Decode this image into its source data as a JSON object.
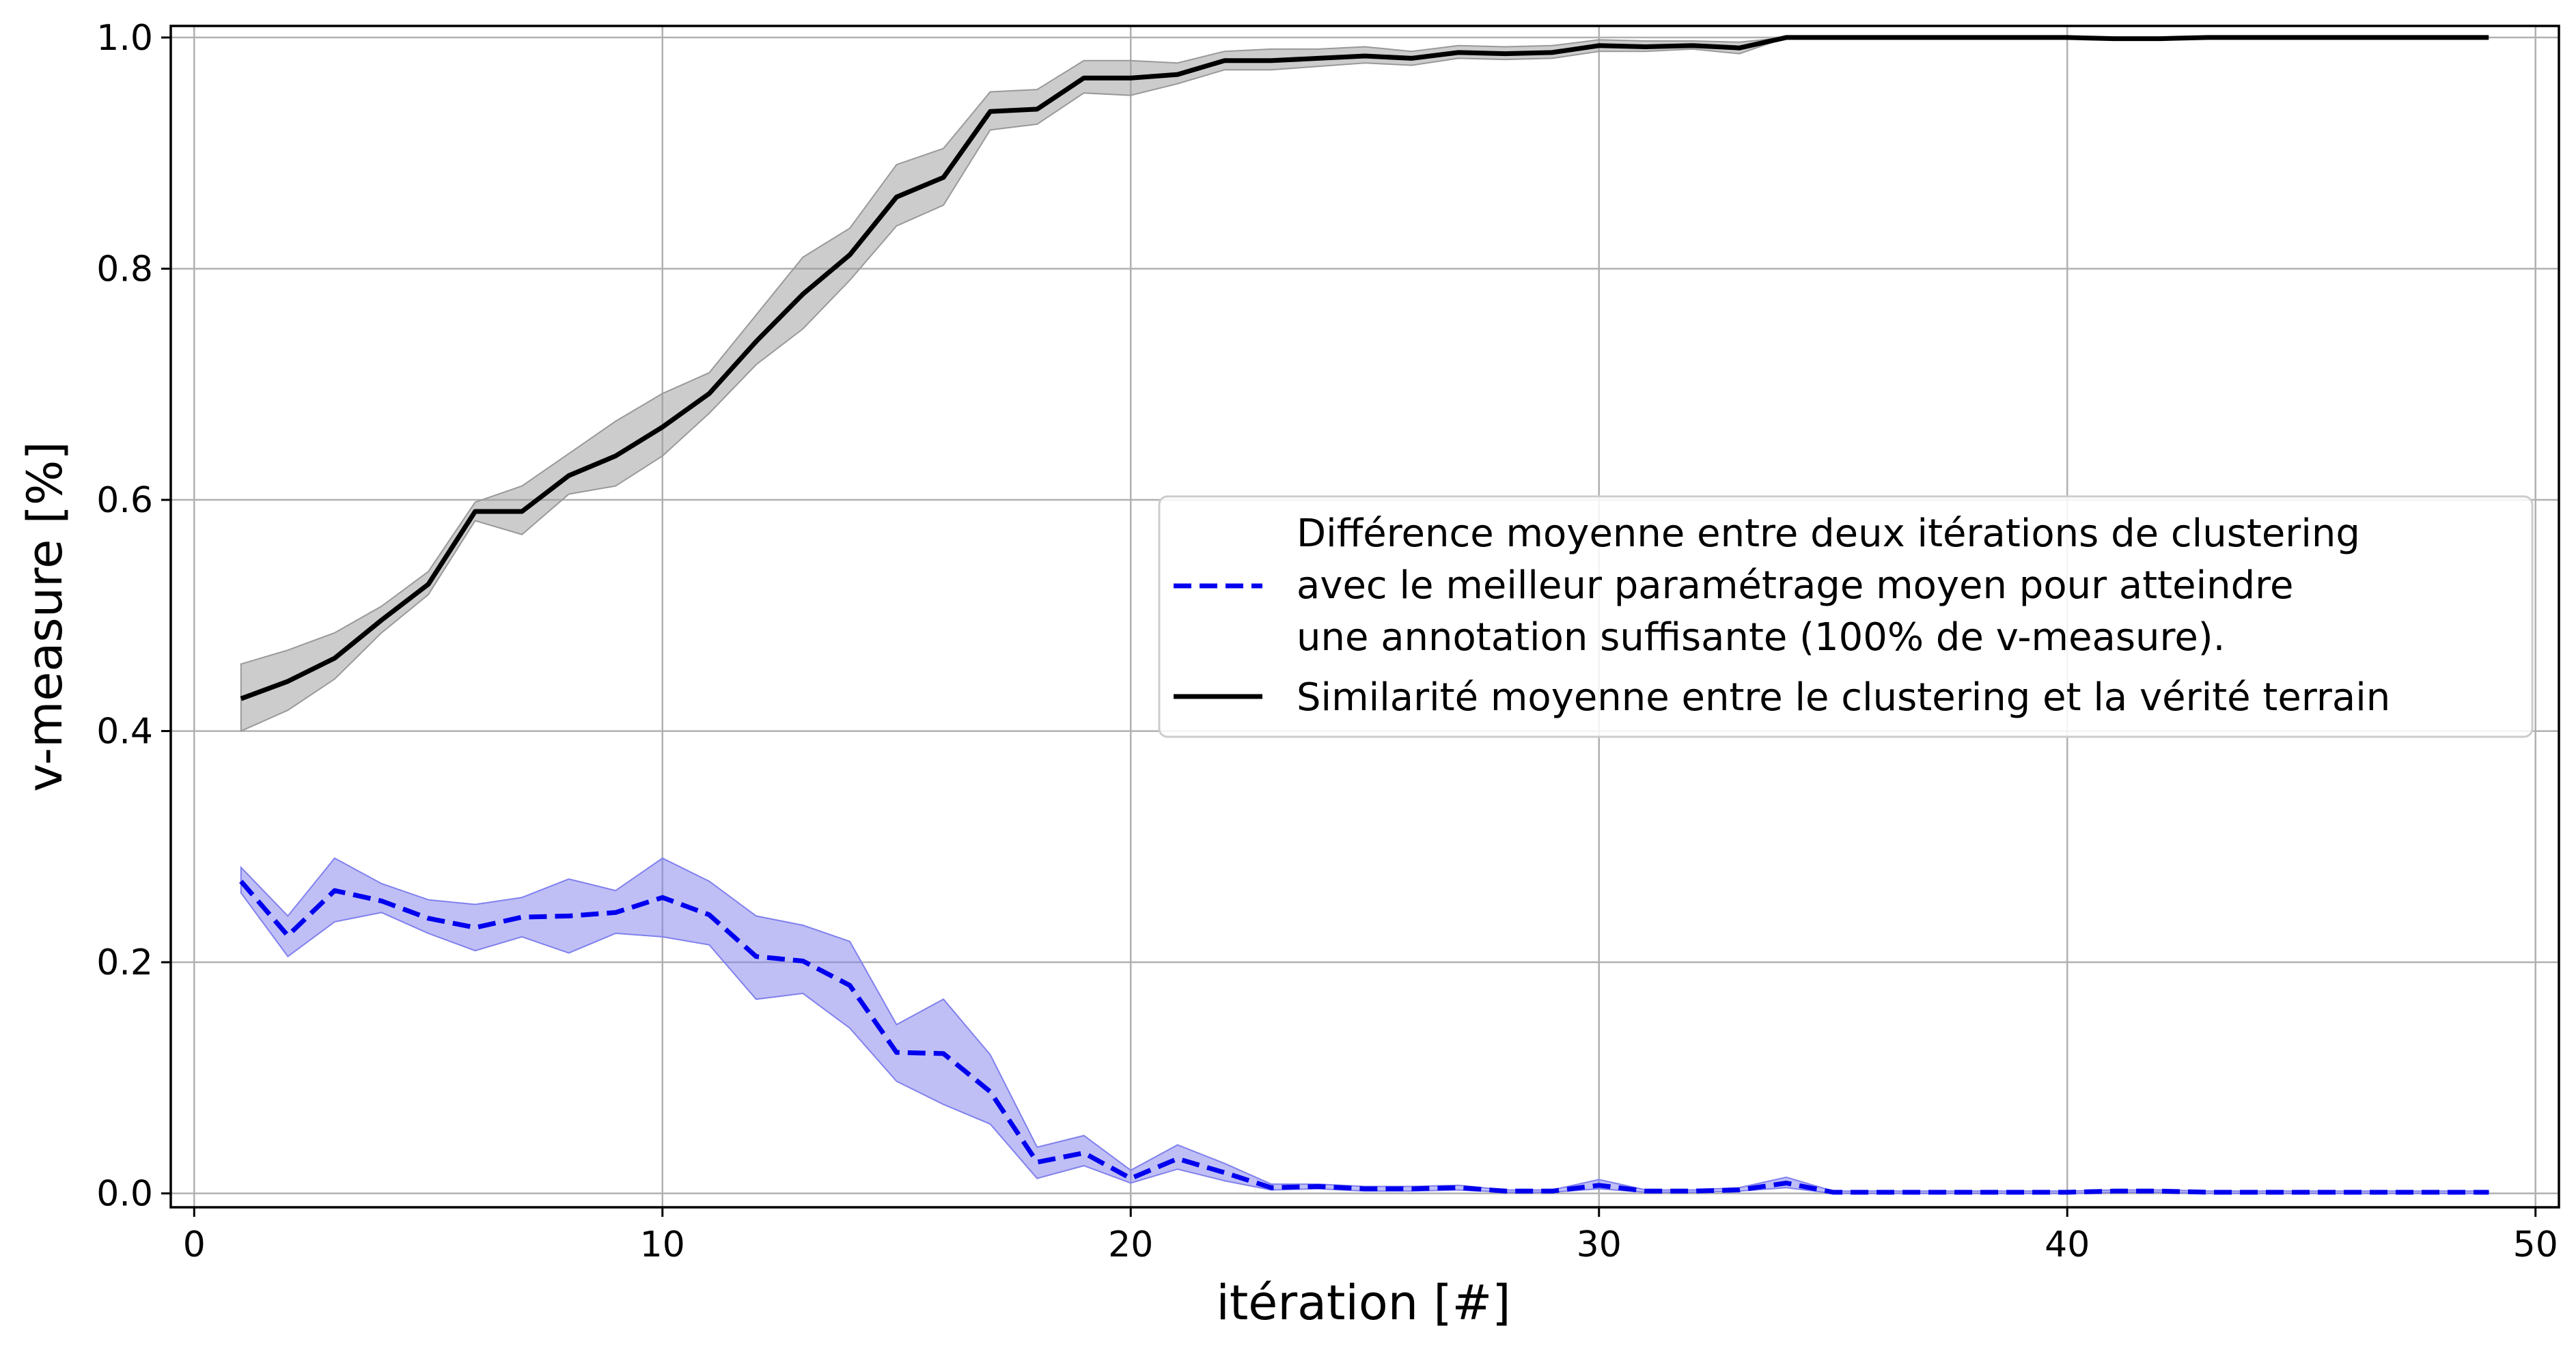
{
  "chart_data": {
    "type": "line",
    "title": "",
    "xlabel": "itération [#]",
    "ylabel": "v-measure [%]",
    "xlim": [
      -0.5,
      50.5
    ],
    "ylim": [
      -0.012,
      1.01
    ],
    "xticks": [
      0,
      10,
      20,
      30,
      40,
      50
    ],
    "yticks": [
      0.0,
      0.2,
      0.4,
      0.6,
      0.8,
      1.0
    ],
    "xtick_labels": [
      "0",
      "10",
      "20",
      "30",
      "40",
      "50"
    ],
    "ytick_labels": [
      "0.0",
      "0.2",
      "0.4",
      "0.6",
      "0.8",
      "1.0"
    ],
    "grid": true,
    "legend_position": "center-right",
    "x": [
      1,
      2,
      3,
      4,
      5,
      6,
      7,
      8,
      9,
      10,
      11,
      12,
      13,
      14,
      15,
      16,
      17,
      18,
      19,
      20,
      21,
      22,
      23,
      24,
      25,
      26,
      27,
      28,
      29,
      30,
      31,
      32,
      33,
      34,
      35,
      36,
      37,
      38,
      39,
      40,
      41,
      42,
      43,
      44,
      45,
      46,
      47,
      48,
      49
    ],
    "series": [
      {
        "name": "Différence moyenne entre deux itérations de clustering\navec le meilleur paramétrage moyen pour atteindre\nune annotation suffisante (100% de v-measure).",
        "color": "#0000ee",
        "band_color": "#8080ee",
        "linestyle": "dashed",
        "values": [
          0.27,
          0.223,
          0.262,
          0.253,
          0.238,
          0.23,
          0.239,
          0.24,
          0.243,
          0.256,
          0.241,
          0.205,
          0.201,
          0.18,
          0.122,
          0.121,
          0.088,
          0.027,
          0.035,
          0.013,
          0.03,
          0.018,
          0.005,
          0.006,
          0.004,
          0.004,
          0.005,
          0.002,
          0.002,
          0.007,
          0.002,
          0.002,
          0.003,
          0.009,
          0.001,
          0.001,
          0.001,
          0.001,
          0.001,
          0.001,
          0.002,
          0.002,
          0.001,
          0.001,
          0.001,
          0.001,
          0.001,
          0.001,
          0.001
        ],
        "lower": [
          0.26,
          0.205,
          0.235,
          0.243,
          0.225,
          0.21,
          0.222,
          0.208,
          0.225,
          0.222,
          0.215,
          0.168,
          0.173,
          0.143,
          0.097,
          0.077,
          0.06,
          0.013,
          0.024,
          0.009,
          0.021,
          0.011,
          0.003,
          0.004,
          0.002,
          0.002,
          0.003,
          0.001,
          0.001,
          0.004,
          0.001,
          0.001,
          0.002,
          0.005,
          0.0,
          0.0,
          0.0,
          0.0,
          0.0,
          0.0,
          0.001,
          0.001,
          0.0,
          0.0,
          0.0,
          0.0,
          0.0,
          0.0,
          0.0
        ],
        "upper": [
          0.282,
          0.24,
          0.29,
          0.268,
          0.254,
          0.25,
          0.256,
          0.272,
          0.262,
          0.29,
          0.27,
          0.24,
          0.232,
          0.218,
          0.146,
          0.168,
          0.12,
          0.04,
          0.05,
          0.02,
          0.042,
          0.026,
          0.008,
          0.008,
          0.006,
          0.006,
          0.007,
          0.003,
          0.003,
          0.012,
          0.003,
          0.003,
          0.005,
          0.014,
          0.002,
          0.002,
          0.002,
          0.002,
          0.002,
          0.002,
          0.003,
          0.003,
          0.002,
          0.002,
          0.002,
          0.002,
          0.002,
          0.002,
          0.002
        ]
      },
      {
        "name": "Similarité moyenne entre le clustering et la vérité terrain",
        "color": "#000000",
        "band_color": "#999999",
        "linestyle": "solid",
        "values": [
          0.428,
          0.443,
          0.463,
          0.496,
          0.527,
          0.59,
          0.59,
          0.621,
          0.638,
          0.663,
          0.692,
          0.737,
          0.778,
          0.812,
          0.862,
          0.879,
          0.936,
          0.938,
          0.965,
          0.965,
          0.968,
          0.98,
          0.98,
          0.982,
          0.984,
          0.982,
          0.987,
          0.986,
          0.987,
          0.993,
          0.992,
          0.993,
          0.991,
          1.0,
          1.0,
          1.0,
          1.0,
          1.0,
          1.0,
          1.0,
          0.999,
          0.999,
          1.0,
          1.0,
          1.0,
          1.0,
          1.0,
          1.0,
          1.0
        ],
        "lower": [
          0.4,
          0.418,
          0.445,
          0.485,
          0.518,
          0.582,
          0.57,
          0.605,
          0.612,
          0.638,
          0.675,
          0.717,
          0.748,
          0.79,
          0.837,
          0.855,
          0.92,
          0.925,
          0.952,
          0.95,
          0.96,
          0.972,
          0.972,
          0.975,
          0.978,
          0.976,
          0.982,
          0.981,
          0.982,
          0.988,
          0.988,
          0.99,
          0.986,
          1.0,
          1.0,
          1.0,
          1.0,
          1.0,
          1.0,
          1.0,
          0.998,
          0.998,
          1.0,
          1.0,
          1.0,
          1.0,
          1.0,
          1.0,
          1.0
        ],
        "upper": [
          0.458,
          0.47,
          0.485,
          0.508,
          0.538,
          0.598,
          0.612,
          0.64,
          0.668,
          0.692,
          0.71,
          0.76,
          0.81,
          0.835,
          0.89,
          0.904,
          0.953,
          0.955,
          0.98,
          0.98,
          0.978,
          0.988,
          0.99,
          0.99,
          0.992,
          0.988,
          0.993,
          0.992,
          0.993,
          0.998,
          0.997,
          0.997,
          0.996,
          1.0,
          1.0,
          1.0,
          1.0,
          1.0,
          1.0,
          1.0,
          1.0,
          1.0,
          1.0,
          1.0,
          1.0,
          1.0,
          1.0,
          1.0,
          1.0
        ]
      }
    ]
  }
}
